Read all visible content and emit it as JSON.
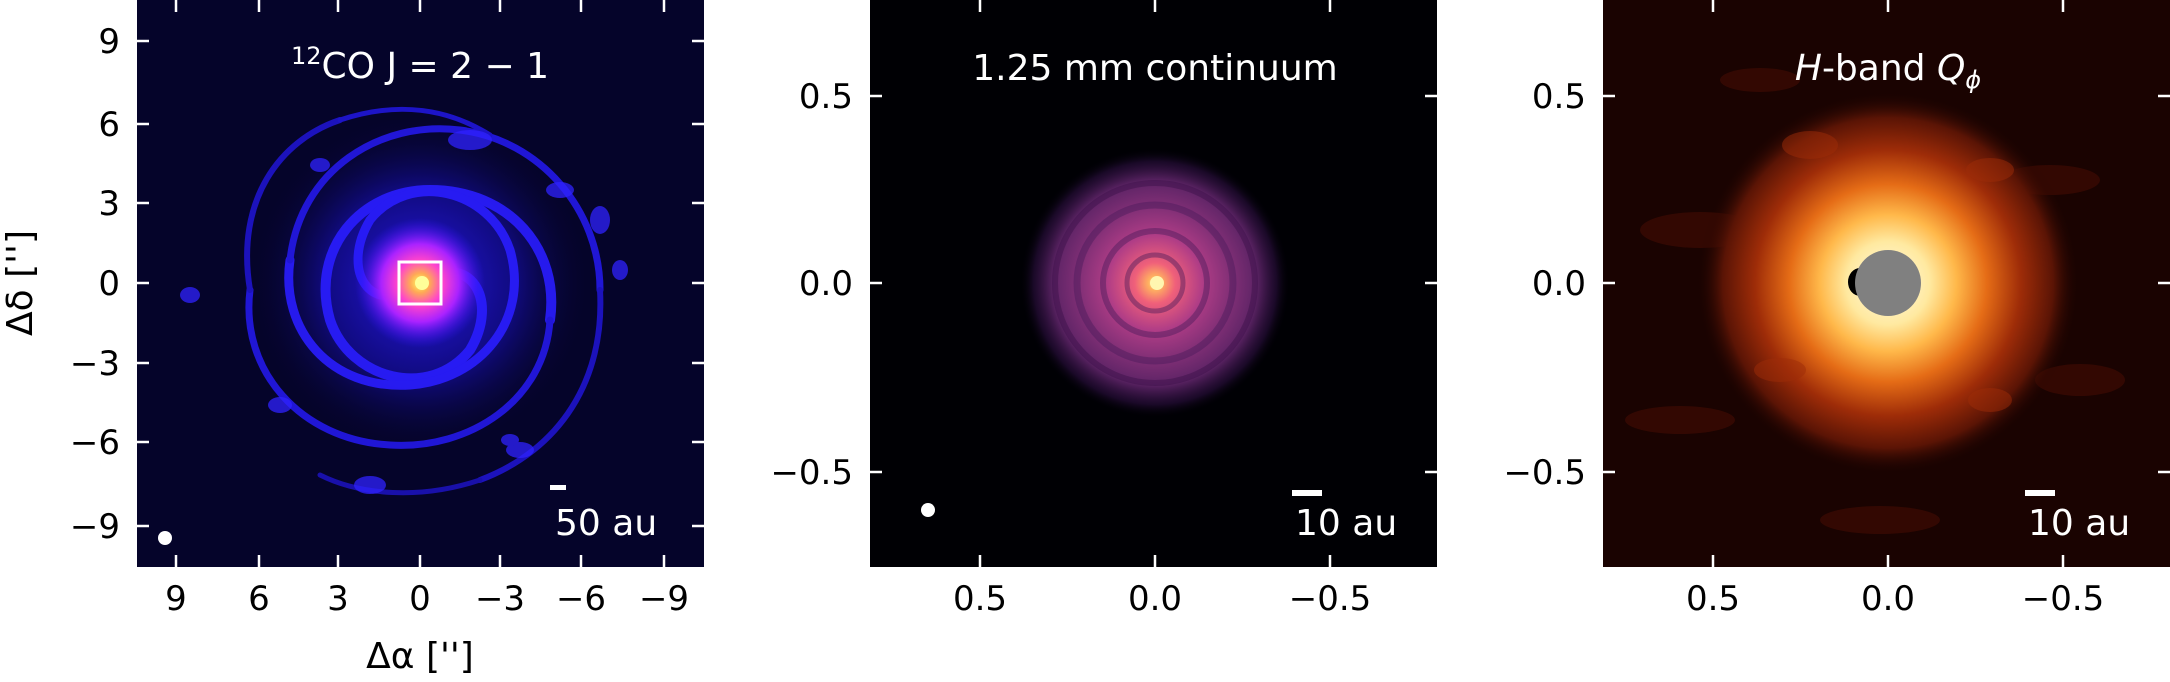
{
  "figure": {
    "panels": [
      {
        "title": "CO J = 2 − 1",
        "title_superscript": "12",
        "tick_labels_y": [
          "9",
          "6",
          "3",
          "0",
          "−3",
          "−6",
          "−9"
        ],
        "tick_labels_x": [
          "9",
          "6",
          "3",
          "0",
          "−3",
          "−6",
          "−9"
        ],
        "y_axis_label": "Δδ ['']",
        "x_axis_label": "Δα ['']",
        "scalebar_label": "50 au",
        "colormap": "blue-magenta",
        "has_inset_box": true,
        "has_beam": true
      },
      {
        "title": "1.25 mm continuum",
        "tick_labels_y": [
          "0.5",
          "0.0",
          "−0.5"
        ],
        "tick_labels_x": [
          "0.5",
          "0.0",
          "−0.5"
        ],
        "scalebar_label": "10 au",
        "colormap": "magma",
        "has_beam": true
      },
      {
        "title_prefix": "H",
        "title_middle": "-band ",
        "title_q": "Q",
        "title_sub": "ϕ",
        "tick_labels_y": [
          "0.5",
          "0.0",
          "−0.5"
        ],
        "tick_labels_x": [
          "0.5",
          "0.0",
          "−0.5"
        ],
        "scalebar_label": "10 au",
        "colormap": "hot",
        "has_coronagraph_mask": true
      }
    ]
  }
}
